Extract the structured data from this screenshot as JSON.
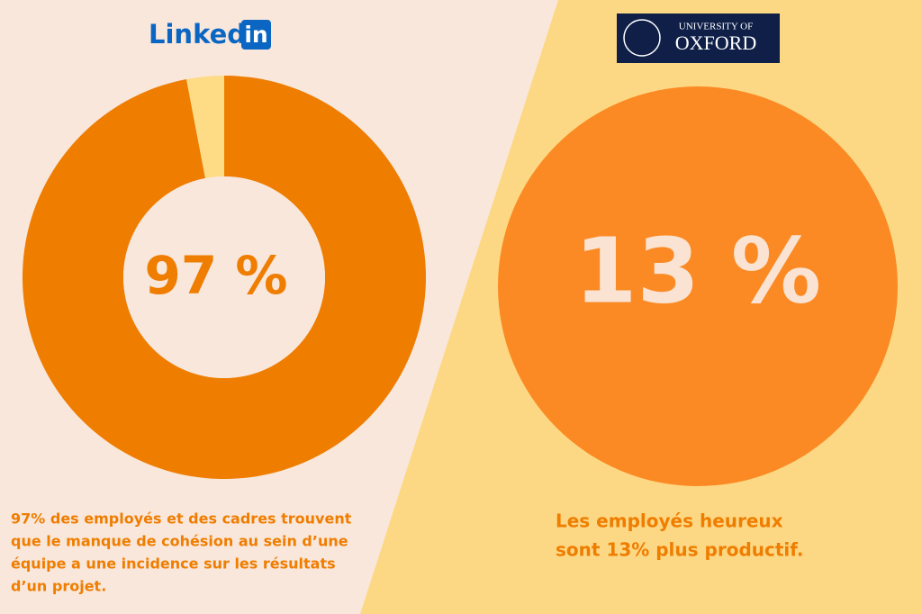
{
  "linkedin": {
    "logo": {
      "word": "Linked",
      "badge": "in"
    },
    "chart_data": {
      "type": "donut",
      "categories": [
        null,
        null
      ],
      "values": [
        97,
        3
      ],
      "value_labels": [
        "97 %",
        null
      ],
      "colors": [
        "#ef7d00",
        "#fddc85"
      ]
    },
    "caption": [
      "97% des employés et des cadres trouvent",
      "que le manque de cohésion au sein d’une",
      "équipe a une incidence sur les résultats",
      "d’un projet."
    ]
  },
  "oxford": {
    "logo": {
      "line1": "UNIVERSITY OF",
      "line2": "OXFORD"
    },
    "stat": "13 %",
    "caption": [
      "Les employés heureux",
      "sont 13% plus productif."
    ]
  }
}
